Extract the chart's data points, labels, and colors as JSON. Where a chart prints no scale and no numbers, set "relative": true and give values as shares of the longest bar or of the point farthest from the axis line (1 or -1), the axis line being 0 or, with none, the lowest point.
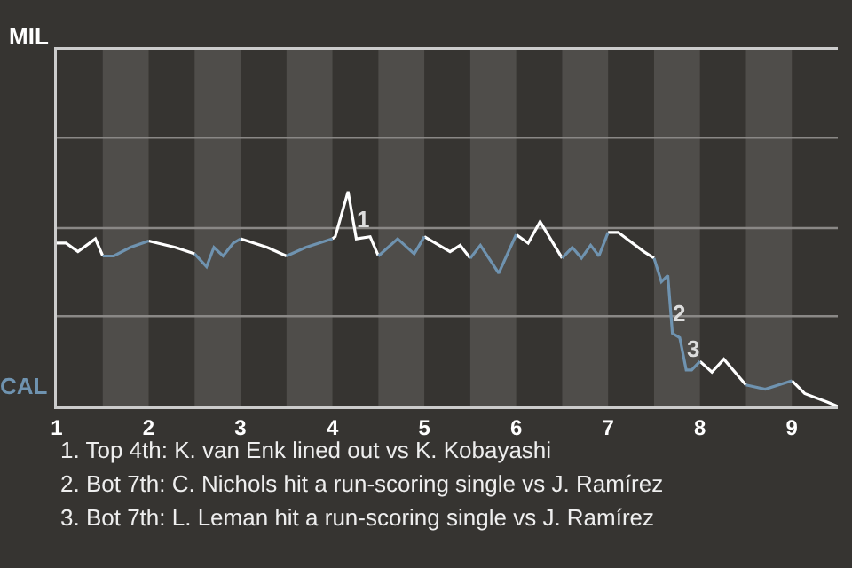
{
  "chart_data": {
    "type": "line",
    "relative": true,
    "legend": false,
    "ref_lines": [
      {
        "axis": "y",
        "value": 0.42,
        "color": "#8a8886"
      },
      {
        "axis": "y",
        "value": 0.83,
        "color": "#8a8886"
      },
      {
        "axis": "y",
        "value": 1.25,
        "color": "#8a8886"
      }
    ],
    "marker": "none",
    "line_style": "solid",
    "xlim": [
      1,
      9.5
    ],
    "xticks": [
      1,
      2,
      3,
      4,
      5,
      6,
      7,
      8,
      9
    ],
    "series": [
      {
        "name": "MIL",
        "color": "#ffffff",
        "x": [
          1,
          1.1,
          1.23,
          1.42,
          1.5,
          1.8,
          2,
          2.29,
          2.5,
          2.7,
          3,
          3.29,
          3.5,
          3.7,
          4,
          4.03,
          4.17,
          4.26,
          4.41,
          4.5,
          4.7,
          5,
          5.28,
          5.39,
          5.5,
          5.7,
          6,
          6.13,
          6.26,
          6.5,
          6.7,
          7,
          7.11,
          7.39,
          7.5,
          7.7,
          8,
          8.13,
          8.26,
          8.5,
          8.7,
          9,
          9.14,
          9.39,
          9.5
        ],
        "values": [
          0.76,
          0.76,
          0.72,
          0.78,
          0.7,
          null,
          0.77,
          0.74,
          0.71,
          null,
          0.78,
          0.74,
          0.7,
          null,
          0.78,
          0.79,
          1,
          0.78,
          0.79,
          0.7,
          null,
          0.79,
          0.72,
          0.75,
          0.69,
          null,
          0.8,
          0.76,
          0.86,
          0.69,
          null,
          0.81,
          0.81,
          0.72,
          0.69,
          null,
          0.21,
          0.16,
          0.22,
          0.1,
          null,
          0.12,
          0.06,
          0.02,
          0
        ]
      },
      {
        "name": "CAL",
        "color": "#6f93b0",
        "x": [
          1.5,
          1.62,
          1.8,
          2,
          2.2,
          2.5,
          2.63,
          2.71,
          2.81,
          2.92,
          3,
          3.2,
          3.5,
          3.71,
          4,
          4.2,
          4.5,
          4.71,
          4.89,
          5,
          5.2,
          5.5,
          5.61,
          5.81,
          6,
          6.2,
          6.5,
          6.61,
          6.71,
          6.81,
          6.9,
          7,
          7.2,
          7.5,
          7.58,
          7.65,
          7.7,
          7.78,
          7.85,
          7.91,
          8,
          8.2,
          8.5,
          8.71,
          9
        ],
        "values": [
          0.7,
          0.7,
          0.74,
          0.77,
          null,
          0.71,
          0.65,
          0.74,
          0.7,
          0.76,
          0.78,
          null,
          0.7,
          0.74,
          0.78,
          null,
          0.7,
          0.78,
          0.71,
          0.79,
          null,
          0.69,
          0.75,
          0.62,
          0.8,
          null,
          0.69,
          0.74,
          0.69,
          0.75,
          0.7,
          0.81,
          null,
          0.69,
          0.58,
          0.61,
          0.34,
          0.32,
          0.17,
          0.17,
          0.21,
          null,
          0.1,
          0.08,
          0.12
        ]
      }
    ],
    "bands": [
      {
        "axis": "x",
        "from": 1.5,
        "to": 2,
        "color": "#4f4d4a"
      },
      {
        "axis": "x",
        "from": 2.5,
        "to": 3,
        "color": "#4f4d4a"
      },
      {
        "axis": "x",
        "from": 3.5,
        "to": 4,
        "color": "#4f4d4a"
      },
      {
        "axis": "x",
        "from": 4.5,
        "to": 5,
        "color": "#4f4d4a"
      },
      {
        "axis": "x",
        "from": 5.5,
        "to": 6,
        "color": "#4f4d4a"
      },
      {
        "axis": "x",
        "from": 6.5,
        "to": 7,
        "color": "#4f4d4a"
      },
      {
        "axis": "x",
        "from": 7.5,
        "to": 8,
        "color": "#4f4d4a"
      },
      {
        "axis": "x",
        "from": 8.5,
        "to": 9,
        "color": "#4f4d4a"
      }
    ],
    "annotations": [
      {
        "text": "1",
        "x": 4.26,
        "y": 0.78
      },
      {
        "text": "2",
        "x": 7.7,
        "y": 0.34
      },
      {
        "text": "3",
        "x": 7.85,
        "y": 0.17
      },
      "1. Top 4th: K. van Enk lined out vs K. Kobayashi",
      "2. Bot 7th: C. Nichols hit a run-scoring single vs J. Ramírez",
      "3. Bot 7th: L. Leman hit a run-scoring single vs J. Ramírez"
    ]
  }
}
